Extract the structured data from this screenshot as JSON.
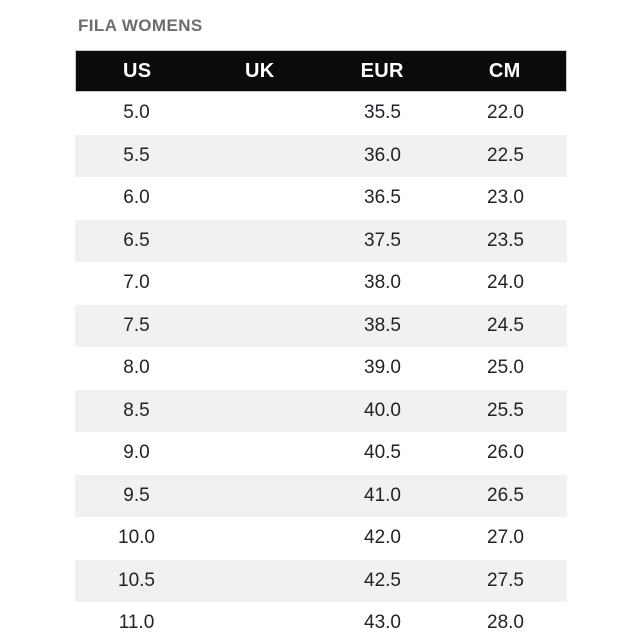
{
  "chart_data": {
    "type": "table",
    "title": "FILA WOMENS",
    "columns": [
      "US",
      "UK",
      "EUR",
      "CM"
    ],
    "rows": [
      [
        "5.0",
        "",
        "35.5",
        "22.0"
      ],
      [
        "5.5",
        "",
        "36.0",
        "22.5"
      ],
      [
        "6.0",
        "",
        "36.5",
        "23.0"
      ],
      [
        "6.5",
        "",
        "37.5",
        "23.5"
      ],
      [
        "7.0",
        "",
        "38.0",
        "24.0"
      ],
      [
        "7.5",
        "",
        "38.5",
        "24.5"
      ],
      [
        "8.0",
        "",
        "39.0",
        "25.0"
      ],
      [
        "8.5",
        "",
        "40.0",
        "25.5"
      ],
      [
        "9.0",
        "",
        "40.5",
        "26.0"
      ],
      [
        "9.5",
        "",
        "41.0",
        "26.5"
      ],
      [
        "10.0",
        "",
        "42.0",
        "27.0"
      ],
      [
        "10.5",
        "",
        "42.5",
        "27.5"
      ],
      [
        "11.0",
        "",
        "43.0",
        "28.0"
      ]
    ]
  },
  "colors": {
    "header_bg": "#0b0b0b",
    "header_text": "#ffffff",
    "header_border": "#c8c8c8",
    "row_alt_bg": "#f1f1ef",
    "row_text": "#222228",
    "title_color": "#6d6d6d"
  }
}
